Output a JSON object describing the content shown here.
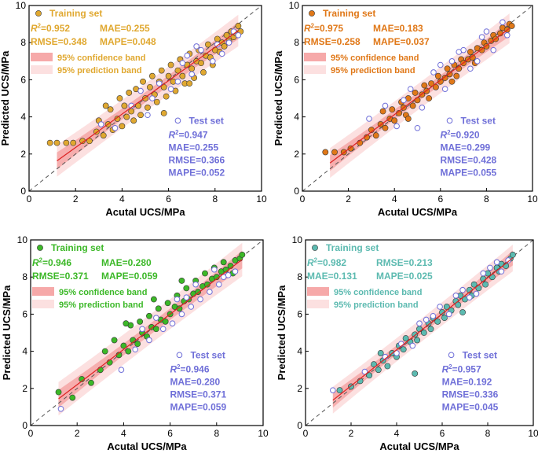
{
  "figure": {
    "x_ticks": [
      0,
      2,
      4,
      6,
      8,
      10
    ],
    "y_ticks": [
      0,
      2,
      4,
      6,
      8,
      10
    ]
  },
  "chart_data": [
    {
      "type": "scatter",
      "panel": "top-left",
      "xlabel": "Acutal UCS/MPa",
      "ylabel": "Predicted UCS/MPa",
      "xlim": [
        0,
        10
      ],
      "ylim": [
        0,
        10
      ],
      "training_color": "#E0A830",
      "test_color": "#6F6FD8",
      "band_color": "#F07070",
      "legend": {
        "training_label": "Training set",
        "stat_lines": [
          [
            "R²=0.952",
            "MAE=0.255"
          ],
          [
            "RMSE=0.348",
            "MAPE=0.048"
          ]
        ],
        "confidence_label": "95% confidence band",
        "prediction_label": "95% prediction band"
      },
      "test_legend": {
        "label": "Test set",
        "stats": [
          "R²=0.947",
          "MAE=0.255",
          "RMSE=0.366",
          "MAPE=0.052"
        ]
      },
      "fit": {
        "slope": 0.9,
        "intercept": 0.55,
        "x_range": [
          1.2,
          9.0
        ],
        "conf_halfwidth": 0.28,
        "pred_halfwidth": 0.75
      },
      "training_points": [
        [
          0.9,
          2.6
        ],
        [
          1.2,
          2.6
        ],
        [
          1.6,
          2.6
        ],
        [
          1.9,
          2.6
        ],
        [
          2.3,
          2.7
        ],
        [
          2.6,
          2.7
        ],
        [
          2.9,
          3.2
        ],
        [
          3.0,
          3.8
        ],
        [
          3.2,
          3.0
        ],
        [
          3.4,
          3.6
        ],
        [
          3.5,
          4.4
        ],
        [
          3.6,
          3.3
        ],
        [
          3.8,
          3.9
        ],
        [
          3.9,
          5.0
        ],
        [
          4.0,
          3.5
        ],
        [
          4.1,
          4.6
        ],
        [
          4.2,
          4.0
        ],
        [
          4.3,
          5.3
        ],
        [
          4.4,
          4.3
        ],
        [
          4.5,
          3.8
        ],
        [
          4.6,
          5.5
        ],
        [
          4.7,
          4.6
        ],
        [
          4.8,
          4.1
        ],
        [
          4.9,
          5.9
        ],
        [
          5.0,
          5.0
        ],
        [
          5.1,
          4.5
        ],
        [
          5.2,
          5.6
        ],
        [
          5.3,
          6.2
        ],
        [
          5.4,
          5.2
        ],
        [
          5.5,
          4.8
        ],
        [
          5.6,
          5.9
        ],
        [
          5.7,
          6.5
        ],
        [
          5.8,
          5.6
        ],
        [
          5.9,
          5.1
        ],
        [
          6.0,
          6.2
        ],
        [
          6.1,
          6.8
        ],
        [
          6.2,
          5.9
        ],
        [
          6.3,
          5.4
        ],
        [
          6.4,
          6.5
        ],
        [
          6.5,
          7.1
        ],
        [
          6.6,
          6.2
        ],
        [
          6.7,
          5.8
        ],
        [
          6.8,
          6.8
        ],
        [
          6.9,
          7.4
        ],
        [
          7.0,
          6.6
        ],
        [
          7.1,
          6.1
        ],
        [
          7.2,
          7.0
        ],
        [
          7.3,
          7.6
        ],
        [
          7.4,
          6.9
        ],
        [
          7.5,
          6.4
        ],
        [
          7.6,
          7.3
        ],
        [
          7.7,
          7.9
        ],
        [
          7.8,
          7.2
        ],
        [
          7.9,
          6.8
        ],
        [
          8.0,
          7.6
        ],
        [
          8.1,
          8.2
        ],
        [
          8.2,
          7.5
        ],
        [
          8.3,
          8.0
        ],
        [
          8.4,
          7.8
        ],
        [
          8.5,
          8.4
        ],
        [
          8.6,
          8.1
        ],
        [
          8.7,
          8.6
        ],
        [
          8.8,
          8.3
        ],
        [
          8.9,
          8.5
        ],
        [
          9.0,
          8.9
        ],
        [
          9.1,
          8.6
        ],
        [
          3.3,
          4.6
        ],
        [
          5.8,
          4.2
        ],
        [
          6.9,
          5.8
        ]
      ],
      "test_points": [
        [
          3.1,
          3.6
        ],
        [
          3.7,
          3.4
        ],
        [
          4.4,
          4.6
        ],
        [
          5.1,
          4.1
        ],
        [
          5.6,
          5.8
        ],
        [
          6.1,
          5.5
        ],
        [
          6.6,
          6.9
        ],
        [
          7.0,
          6.3
        ],
        [
          7.4,
          7.6
        ],
        [
          7.9,
          7.0
        ],
        [
          8.3,
          7.4
        ],
        [
          8.6,
          8.0
        ],
        [
          8.8,
          8.6
        ],
        [
          9.0,
          8.4
        ],
        [
          4.8,
          5.4
        ],
        [
          6.4,
          5.9
        ],
        [
          7.2,
          7.8
        ],
        [
          8.1,
          7.9
        ],
        [
          5.3,
          5.0
        ],
        [
          6.8,
          7.3
        ]
      ]
    },
    {
      "type": "scatter",
      "panel": "top-right",
      "xlabel": "Acutal UCS/MPa",
      "ylabel": "Predicted UCS/MPa",
      "xlim": [
        0,
        10
      ],
      "ylim": [
        0,
        10
      ],
      "training_color": "#E07818",
      "test_color": "#6F6FD8",
      "band_color": "#F07070",
      "legend": {
        "training_label": "Training set",
        "stat_lines": [
          [
            "R²=0.975",
            "MAE=0.183"
          ],
          [
            "RMSE=0.258",
            "MAPE=0.037"
          ]
        ],
        "confidence_label": "95% confidence band",
        "prediction_label": "95% prediction band"
      },
      "test_legend": {
        "label": "Test set",
        "stats": [
          "R²=0.920",
          "MAE=0.299",
          "RMSE=0.428",
          "MAPE=0.055"
        ]
      },
      "fit": {
        "slope": 0.93,
        "intercept": 0.4,
        "x_range": [
          1.2,
          9.0
        ],
        "conf_halfwidth": 0.25,
        "pred_halfwidth": 0.7
      },
      "training_points": [
        [
          1.0,
          2.1
        ],
        [
          1.4,
          2.1
        ],
        [
          1.8,
          2.1
        ],
        [
          2.1,
          2.3
        ],
        [
          2.5,
          2.6
        ],
        [
          2.8,
          2.9
        ],
        [
          3.0,
          3.3
        ],
        [
          3.2,
          3.0
        ],
        [
          3.4,
          3.6
        ],
        [
          3.6,
          3.4
        ],
        [
          3.8,
          3.9
        ],
        [
          3.9,
          4.4
        ],
        [
          4.0,
          3.8
        ],
        [
          4.2,
          4.2
        ],
        [
          4.3,
          4.8
        ],
        [
          4.4,
          4.5
        ],
        [
          4.5,
          4.1
        ],
        [
          4.6,
          5.0
        ],
        [
          4.8,
          4.6
        ],
        [
          4.9,
          5.3
        ],
        [
          5.0,
          4.9
        ],
        [
          5.2,
          5.2
        ],
        [
          5.3,
          5.7
        ],
        [
          5.4,
          5.4
        ],
        [
          5.5,
          5.0
        ],
        [
          5.6,
          5.8
        ],
        [
          5.8,
          5.6
        ],
        [
          5.9,
          6.2
        ],
        [
          6.0,
          5.9
        ],
        [
          6.2,
          6.1
        ],
        [
          6.3,
          6.6
        ],
        [
          6.4,
          6.3
        ],
        [
          6.5,
          5.9
        ],
        [
          6.6,
          6.8
        ],
        [
          6.8,
          6.6
        ],
        [
          6.9,
          7.1
        ],
        [
          7.0,
          6.9
        ],
        [
          7.2,
          7.1
        ],
        [
          7.3,
          7.5
        ],
        [
          7.4,
          7.2
        ],
        [
          7.5,
          6.9
        ],
        [
          7.6,
          7.7
        ],
        [
          7.8,
          7.6
        ],
        [
          7.9,
          8.0
        ],
        [
          8.0,
          7.8
        ],
        [
          8.2,
          8.1
        ],
        [
          8.3,
          8.4
        ],
        [
          8.4,
          8.2
        ],
        [
          8.6,
          8.5
        ],
        [
          8.7,
          8.8
        ],
        [
          8.9,
          8.7
        ],
        [
          9.0,
          9.0
        ],
        [
          9.1,
          8.9
        ],
        [
          3.5,
          4.3
        ],
        [
          6.7,
          6.2
        ],
        [
          4.6,
          3.9
        ]
      ],
      "test_points": [
        [
          2.9,
          3.9
        ],
        [
          3.6,
          4.6
        ],
        [
          4.1,
          3.5
        ],
        [
          4.7,
          5.5
        ],
        [
          5.2,
          4.5
        ],
        [
          5.7,
          6.4
        ],
        [
          6.2,
          5.5
        ],
        [
          6.8,
          7.5
        ],
        [
          7.3,
          6.6
        ],
        [
          7.8,
          8.3
        ],
        [
          8.3,
          7.6
        ],
        [
          8.7,
          9.1
        ],
        [
          5.0,
          3.4
        ],
        [
          6.0,
          6.8
        ],
        [
          7.0,
          7.6
        ],
        [
          8.0,
          8.6
        ],
        [
          4.4,
          4.9
        ],
        [
          6.5,
          7.0
        ],
        [
          7.6,
          7.0
        ],
        [
          8.9,
          8.4
        ]
      ]
    },
    {
      "type": "scatter",
      "panel": "bottom-left",
      "xlabel": "Acutal UCS/MPa",
      "ylabel": "Predicted UCS/MPa",
      "xlim": [
        0,
        10
      ],
      "ylim": [
        0,
        10
      ],
      "training_color": "#3CB828",
      "test_color": "#6F6FD8",
      "band_color": "#F07070",
      "legend": {
        "training_label": "Training set",
        "stat_lines": [
          [
            "R²=0.946",
            "MAE=0.280"
          ],
          [
            "RMSE=0.371",
            "MAPE=0.059"
          ]
        ],
        "confidence_label": "95% confidence band",
        "prediction_label": "95% prediction band"
      },
      "test_legend": {
        "label": "Test set",
        "stats": [
          "R²=0.946",
          "MAE=0.280",
          "RMSE=0.371",
          "MAPE=0.059"
        ]
      },
      "fit": {
        "slope": 0.95,
        "intercept": 0.3,
        "x_range": [
          1.2,
          9.1
        ],
        "conf_halfwidth": 0.3,
        "pred_halfwidth": 0.8
      },
      "training_points": [
        [
          1.2,
          1.8
        ],
        [
          1.8,
          1.5
        ],
        [
          2.2,
          2.5
        ],
        [
          2.6,
          2.3
        ],
        [
          3.0,
          3.0
        ],
        [
          3.2,
          4.0
        ],
        [
          3.4,
          3.4
        ],
        [
          3.6,
          4.6
        ],
        [
          3.8,
          3.8
        ],
        [
          4.0,
          4.3
        ],
        [
          4.2,
          4.0
        ],
        [
          4.3,
          5.4
        ],
        [
          4.4,
          4.6
        ],
        [
          4.6,
          4.4
        ],
        [
          4.7,
          5.6
        ],
        [
          4.8,
          5.0
        ],
        [
          5.0,
          4.8
        ],
        [
          5.1,
          5.9
        ],
        [
          5.2,
          5.3
        ],
        [
          5.4,
          5.2
        ],
        [
          5.5,
          6.3
        ],
        [
          5.6,
          5.7
        ],
        [
          5.8,
          5.6
        ],
        [
          5.9,
          6.6
        ],
        [
          6.0,
          6.0
        ],
        [
          6.2,
          6.4
        ],
        [
          6.3,
          7.0
        ],
        [
          6.4,
          6.3
        ],
        [
          6.6,
          6.7
        ],
        [
          6.7,
          7.4
        ],
        [
          6.8,
          6.8
        ],
        [
          7.0,
          7.1
        ],
        [
          7.1,
          7.8
        ],
        [
          7.2,
          7.2
        ],
        [
          7.4,
          7.5
        ],
        [
          7.5,
          8.2
        ],
        [
          7.6,
          7.6
        ],
        [
          7.8,
          7.9
        ],
        [
          7.9,
          8.5
        ],
        [
          8.0,
          8.0
        ],
        [
          8.2,
          8.3
        ],
        [
          8.3,
          8.8
        ],
        [
          8.4,
          8.4
        ],
        [
          8.6,
          8.6
        ],
        [
          8.7,
          8.2
        ],
        [
          8.8,
          8.9
        ],
        [
          9.0,
          9.0
        ],
        [
          9.1,
          9.2
        ],
        [
          4.1,
          5.5
        ],
        [
          5.3,
          6.8
        ],
        [
          6.5,
          7.8
        ]
      ],
      "test_points": [
        [
          1.3,
          0.9
        ],
        [
          3.9,
          3.0
        ],
        [
          4.5,
          4.1
        ],
        [
          5.1,
          4.6
        ],
        [
          5.7,
          5.2
        ],
        [
          6.1,
          5.5
        ],
        [
          6.5,
          6.0
        ],
        [
          6.9,
          6.4
        ],
        [
          7.3,
          6.8
        ],
        [
          7.7,
          7.2
        ],
        [
          8.1,
          7.6
        ],
        [
          8.5,
          8.1
        ],
        [
          8.8,
          8.3
        ],
        [
          5.4,
          5.8
        ],
        [
          6.3,
          6.8
        ],
        [
          7.1,
          7.6
        ],
        [
          7.9,
          8.4
        ],
        [
          8.3,
          8.0
        ],
        [
          4.8,
          5.2
        ],
        [
          6.7,
          6.9
        ]
      ]
    },
    {
      "type": "scatter",
      "panel": "bottom-right",
      "xlabel": "Acutal UCS/MPa",
      "ylabel": "Predicted UCS/MPa",
      "xlim": [
        0,
        10
      ],
      "ylim": [
        0,
        10
      ],
      "training_color": "#5CBAB0",
      "test_color": "#6F6FD8",
      "band_color": "#F07070",
      "legend": {
        "training_label": "Training set",
        "stat_lines": [
          [
            "R²=0.982",
            "RMSE=0.213"
          ],
          [
            "MAE=0.131",
            "MAPE=0.025"
          ]
        ],
        "confidence_label": "95% confidence band",
        "prediction_label": "95% prediction band"
      },
      "test_legend": {
        "label": "Test set",
        "stats": [
          "R²=0.957",
          "MAE=0.192",
          "RMSE=0.336",
          "MAPE=0.045"
        ]
      },
      "fit": {
        "slope": 0.97,
        "intercept": 0.2,
        "x_range": [
          1.2,
          9.1
        ],
        "conf_halfwidth": 0.22,
        "pred_halfwidth": 0.62
      },
      "training_points": [
        [
          1.5,
          1.9
        ],
        [
          2.0,
          2.1
        ],
        [
          2.4,
          2.4
        ],
        [
          2.8,
          2.7
        ],
        [
          3.0,
          3.3
        ],
        [
          3.2,
          3.0
        ],
        [
          3.4,
          3.5
        ],
        [
          3.6,
          3.2
        ],
        [
          3.8,
          3.9
        ],
        [
          4.0,
          3.7
        ],
        [
          4.1,
          4.3
        ],
        [
          4.3,
          4.1
        ],
        [
          4.4,
          4.7
        ],
        [
          4.6,
          4.5
        ],
        [
          4.8,
          4.9
        ],
        [
          4.9,
          4.6
        ],
        [
          5.0,
          5.2
        ],
        [
          5.2,
          5.0
        ],
        [
          5.4,
          5.5
        ],
        [
          5.5,
          5.2
        ],
        [
          5.6,
          5.8
        ],
        [
          5.8,
          5.6
        ],
        [
          6.0,
          6.1
        ],
        [
          6.1,
          5.8
        ],
        [
          6.2,
          6.4
        ],
        [
          6.4,
          6.2
        ],
        [
          6.6,
          6.7
        ],
        [
          6.7,
          6.5
        ],
        [
          6.8,
          7.0
        ],
        [
          7.0,
          6.8
        ],
        [
          7.2,
          7.3
        ],
        [
          7.3,
          7.0
        ],
        [
          7.4,
          7.6
        ],
        [
          7.6,
          7.4
        ],
        [
          7.8,
          7.9
        ],
        [
          7.9,
          7.6
        ],
        [
          8.0,
          8.2
        ],
        [
          8.2,
          8.0
        ],
        [
          8.4,
          8.5
        ],
        [
          8.5,
          8.3
        ],
        [
          8.6,
          8.7
        ],
        [
          8.8,
          8.6
        ],
        [
          9.0,
          9.0
        ],
        [
          9.1,
          9.2
        ],
        [
          4.8,
          2.8
        ],
        [
          3.3,
          3.9
        ],
        [
          6.9,
          6.1
        ]
      ],
      "test_points": [
        [
          1.2,
          1.9
        ],
        [
          2.6,
          2.9
        ],
        [
          3.5,
          3.7
        ],
        [
          4.2,
          4.4
        ],
        [
          4.7,
          4.3
        ],
        [
          5.3,
          5.7
        ],
        [
          5.9,
          6.4
        ],
        [
          6.3,
          6.0
        ],
        [
          6.9,
          7.3
        ],
        [
          7.5,
          7.1
        ],
        [
          8.1,
          8.5
        ],
        [
          8.6,
          8.3
        ],
        [
          8.9,
          8.9
        ],
        [
          5.0,
          5.5
        ],
        [
          6.6,
          7.0
        ],
        [
          7.2,
          6.9
        ],
        [
          7.8,
          8.2
        ],
        [
          4.0,
          3.9
        ],
        [
          5.6,
          5.9
        ],
        [
          8.4,
          8.8
        ]
      ]
    }
  ]
}
